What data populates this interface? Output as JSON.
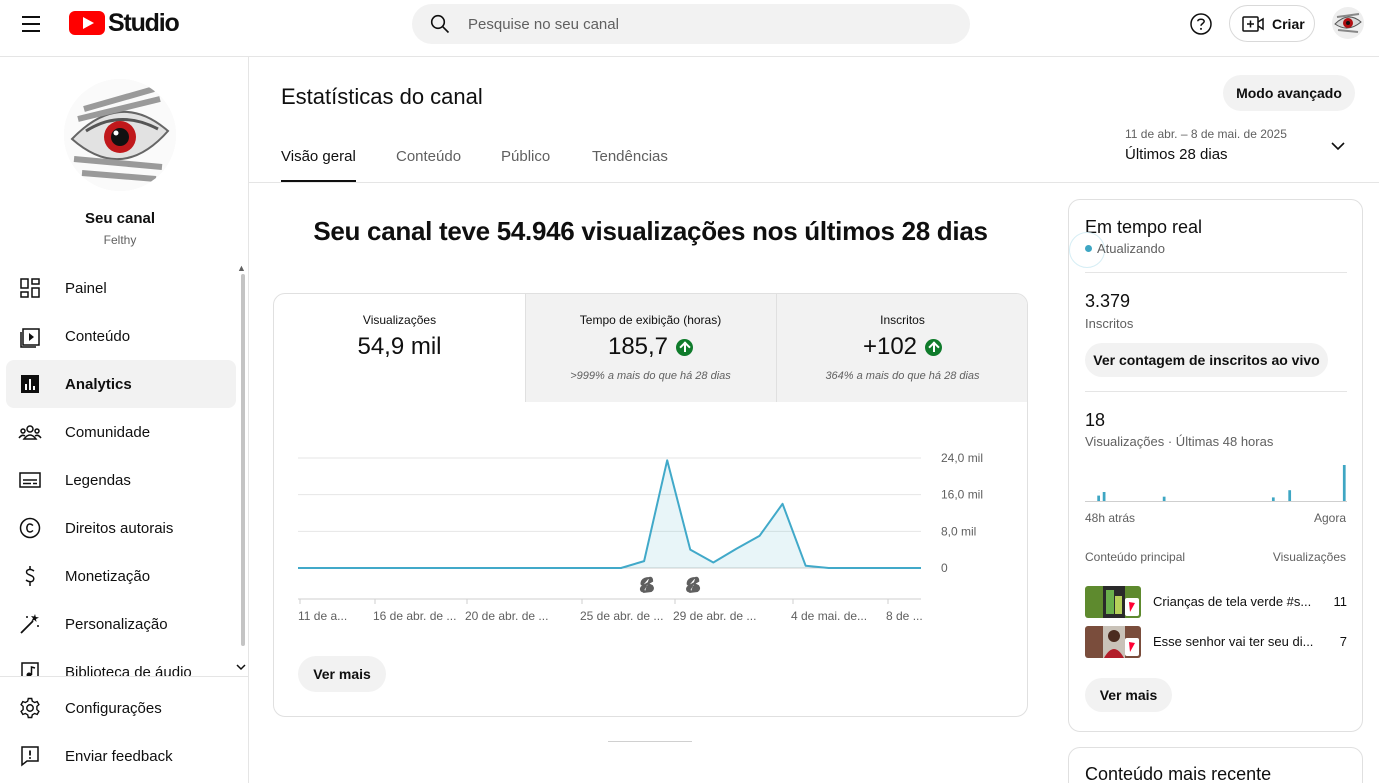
{
  "header": {
    "logo_text": "Studio",
    "search_placeholder": "Pesquise no seu canal",
    "create_label": "Criar"
  },
  "sidebar": {
    "channel_title": "Seu canal",
    "channel_handle": "Felthy",
    "items": [
      {
        "label": "Painel",
        "icon": "dashboard-icon"
      },
      {
        "label": "Conteúdo",
        "icon": "content-icon"
      },
      {
        "label": "Analytics",
        "icon": "analytics-icon",
        "active": true
      },
      {
        "label": "Comunidade",
        "icon": "community-icon"
      },
      {
        "label": "Legendas",
        "icon": "subtitles-icon"
      },
      {
        "label": "Direitos autorais",
        "icon": "copyright-icon"
      },
      {
        "label": "Monetização",
        "icon": "monetization-icon"
      },
      {
        "label": "Personalização",
        "icon": "customization-icon"
      },
      {
        "label": "Biblioteca de áudio",
        "icon": "audio-library-icon"
      }
    ],
    "bottom_items": [
      {
        "label": "Configurações",
        "icon": "settings-icon"
      },
      {
        "label": "Enviar feedback",
        "icon": "feedback-icon"
      }
    ]
  },
  "page": {
    "title": "Estatísticas do canal",
    "advanced_button": "Modo avançado",
    "tabs": [
      "Visão geral",
      "Conteúdo",
      "Público",
      "Tendências"
    ],
    "date_range": "11 de abr. – 8 de mai. de 2025",
    "date_label": "Últimos 28 dias",
    "headline": "Seu canal teve 54.946 visualizações nos últimos 28 dias"
  },
  "metrics": [
    {
      "label": "Visualizações",
      "value": "54,9 mil",
      "trend": "",
      "note": ""
    },
    {
      "label": "Tempo de exibição (horas)",
      "value": "185,7",
      "trend": "up",
      "note": ">999% a mais do que há 28 dias"
    },
    {
      "label": "Inscritos",
      "value": "+102",
      "trend": "up",
      "note": "364% a mais do que há 28 dias"
    }
  ],
  "overview_more": "Ver mais",
  "chart_data": {
    "type": "area",
    "x_tick_labels": [
      "11 de a...",
      "16 de abr. de ...",
      "20 de abr. de ...",
      "25 de abr. de ...",
      "29 de abr. de ...",
      "4 de mai. de...",
      "8 de ..."
    ],
    "y_tick_labels": [
      "0",
      "8,0 mil",
      "16,0 mil",
      "24,0 mil"
    ],
    "ylim": [
      0,
      24000
    ],
    "series": [
      {
        "values": [
          0,
          0,
          0,
          0,
          0,
          0,
          0,
          0,
          0,
          0,
          0,
          0,
          0,
          0,
          0,
          1500,
          23500,
          4000,
          1200,
          4200,
          7000,
          14000,
          500,
          0,
          0,
          0,
          0,
          0
        ]
      }
    ],
    "markers": [
      {
        "day_index": 15,
        "icon": "shorts-icon"
      },
      {
        "day_index": 17,
        "icon": "shorts-icon"
      }
    ],
    "color": "#41a9c9"
  },
  "realtime": {
    "title": "Em tempo real",
    "status": "Atualizando",
    "subscribers_value": "3.379",
    "subscribers_label": "Inscritos",
    "live_count_button": "Ver contagem de inscritos ao vivo",
    "views_value": "18",
    "views_label": "Visualizações · Últimas 48 horas",
    "axis_start": "48h atrás",
    "axis_end": "Agora",
    "spark_values": [
      0,
      0,
      0.15,
      0.25,
      0,
      0,
      0,
      0,
      0,
      0,
      0,
      0,
      0,
      0,
      0.12,
      0,
      0,
      0,
      0,
      0,
      0,
      0,
      0,
      0,
      0,
      0,
      0,
      0,
      0,
      0,
      0,
      0,
      0,
      0,
      0.1,
      0,
      0,
      0.3,
      0,
      0,
      0,
      0,
      0,
      0,
      0,
      0,
      0,
      1
    ],
    "top_header_left": "Conteúdo principal",
    "top_header_right": "Visualizações",
    "top_content": [
      {
        "title": "Crianças de tela verde #s...",
        "views": "11"
      },
      {
        "title": "Esse senhor vai ter seu di...",
        "views": "7"
      }
    ],
    "more_button": "Ver mais"
  },
  "recent": {
    "title": "Conteúdo mais recente"
  }
}
